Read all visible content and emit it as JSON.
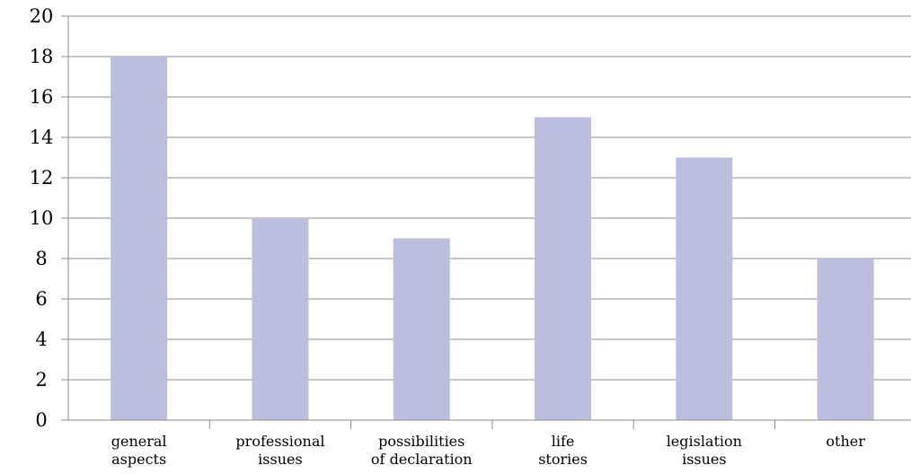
{
  "chart_data": {
    "type": "bar",
    "title": "",
    "xlabel": "",
    "ylabel": "",
    "categories": [
      [
        "general",
        "aspects"
      ],
      [
        "professional",
        "issues"
      ],
      [
        "possibilities",
        "of declaration"
      ],
      [
        "life",
        "stories"
      ],
      [
        "legislation",
        "issues"
      ],
      [
        "other"
      ]
    ],
    "values": [
      18,
      10,
      9,
      15,
      13,
      8
    ],
    "ylim": [
      0,
      20
    ],
    "yticks": [
      0,
      2,
      4,
      6,
      8,
      10,
      12,
      14,
      16,
      18,
      20
    ],
    "grid": true,
    "legend": "none",
    "bar_color": "#bbbedd"
  }
}
